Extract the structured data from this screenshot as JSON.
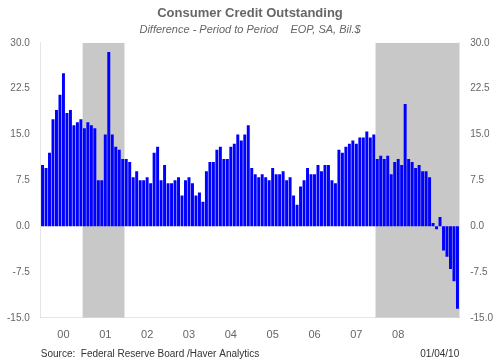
{
  "chart_data": {
    "type": "bar",
    "title": "Consumer Credit Outstanding",
    "subtitle": "Difference - Period to Period    EOP, SA, Bil.$",
    "annotations": [
      "Source:  Federal Reserve Board /Haver Analytics",
      "01/04/10"
    ],
    "categories": [
      null,
      null,
      null,
      null,
      null,
      null,
      "00",
      null,
      null,
      null,
      null,
      null,
      null,
      null,
      null,
      null,
      null,
      null,
      "01",
      null,
      null,
      null,
      null,
      null,
      null,
      null,
      null,
      null,
      null,
      null,
      "02",
      null,
      null,
      null,
      null,
      null,
      null,
      null,
      null,
      null,
      null,
      null,
      "03",
      null,
      null,
      null,
      null,
      null,
      null,
      null,
      null,
      null,
      null,
      null,
      "04",
      null,
      null,
      null,
      null,
      null,
      null,
      null,
      null,
      null,
      null,
      null,
      "05",
      null,
      null,
      null,
      null,
      null,
      null,
      null,
      null,
      null,
      null,
      null,
      "06",
      null,
      null,
      null,
      null,
      null,
      null,
      null,
      null,
      null,
      null,
      null,
      "07",
      null,
      null,
      null,
      null,
      null,
      null,
      null,
      null,
      null,
      null,
      null,
      "08",
      null,
      null,
      null,
      null,
      null,
      null,
      null,
      null,
      null,
      null,
      null,
      null,
      null,
      null,
      null,
      null,
      null
    ],
    "values": [
      10.0,
      9.5,
      12.0,
      17.5,
      19.0,
      21.5,
      25.0,
      18.5,
      19.0,
      16.5,
      17.0,
      17.5,
      16.0,
      17.0,
      16.5,
      16.0,
      7.5,
      7.5,
      15.0,
      28.5,
      15.0,
      13.0,
      12.5,
      11.0,
      11.0,
      10.5,
      8.0,
      9.0,
      7.5,
      7.5,
      8.0,
      7.0,
      12.0,
      13.0,
      7.5,
      10.0,
      7.0,
      7.0,
      7.5,
      8.0,
      5.0,
      7.5,
      8.0,
      7.0,
      5.0,
      5.5,
      4.0,
      9.0,
      10.5,
      10.5,
      12.5,
      13.0,
      11.0,
      11.0,
      13.0,
      13.5,
      15.0,
      14.0,
      15.0,
      16.5,
      9.5,
      8.5,
      8.0,
      8.5,
      8.0,
      7.5,
      9.5,
      8.5,
      8.5,
      9.0,
      7.5,
      8.0,
      5.0,
      3.5,
      6.5,
      7.5,
      9.5,
      8.5,
      8.5,
      10.0,
      9.0,
      10.0,
      10.0,
      7.5,
      7.0,
      12.5,
      12.0,
      13.0,
      13.5,
      14.0,
      13.5,
      14.5,
      14.5,
      15.5,
      14.5,
      15.0,
      11.0,
      11.5,
      11.0,
      11.5,
      8.5,
      10.5,
      11.0,
      10.0,
      20.0,
      11.0,
      10.5,
      9.5,
      10.0,
      9.0,
      9.0,
      8.0,
      0.5,
      -0.5,
      1.5,
      -4.0,
      -5.0,
      -7.0,
      -9.0,
      -13.5
    ],
    "color": "#0000FF",
    "shaded_ranges": [
      {
        "from": 12,
        "to": 23,
        "color": "#C8C8C8"
      },
      {
        "from": 96,
        "to": 119,
        "color": "#C8C8C8"
      }
    ],
    "ylim": [
      -15.0,
      30.0
    ],
    "yticks": [
      {
        "value": -15.0,
        "label": "-15.0"
      },
      -7.5,
      {
        "value": 0.0,
        "label": "0.0"
      },
      7.5,
      {
        "value": 15.0,
        "label": "15.0"
      },
      22.5,
      {
        "value": 30.0,
        "label": "30.0"
      }
    ],
    "y2lim": [
      -15.0,
      30.0
    ],
    "y2ticks": [
      {
        "value": -15.0,
        "label": "-15.0"
      },
      -7.5,
      {
        "value": 0.0,
        "label": "0.0"
      },
      7.5,
      {
        "value": 15.0,
        "label": "15.0"
      },
      22.5,
      {
        "value": 30.0,
        "label": "30.0"
      }
    ],
    "grid": false
  }
}
